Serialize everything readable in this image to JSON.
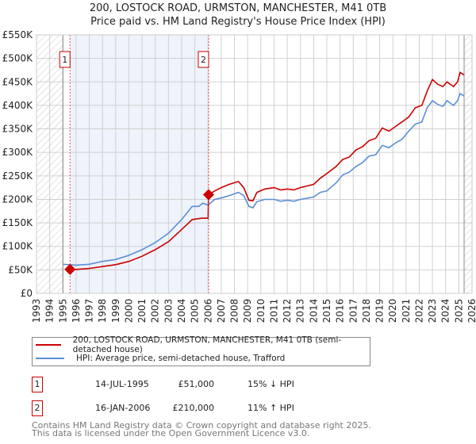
{
  "title": "200, LOSTOCK ROAD, URMSTON, MANCHESTER, M41 0TB",
  "subtitle": "Price paid vs. HM Land Registry's House Price Index (HPI)",
  "chart_data": {
    "type": "line",
    "xlim": [
      1993,
      2026
    ],
    "ylim": [
      0,
      550000
    ],
    "x_ticks": [
      "1993",
      "1994",
      "1995",
      "1996",
      "1997",
      "1998",
      "1999",
      "2000",
      "2001",
      "2002",
      "2003",
      "2004",
      "2005",
      "2006",
      "2007",
      "2008",
      "2009",
      "2010",
      "2011",
      "2012",
      "2013",
      "2014",
      "2015",
      "2016",
      "2017",
      "2018",
      "2019",
      "2020",
      "2021",
      "2022",
      "2023",
      "2024",
      "2025",
      "2026"
    ],
    "y_ticks": [
      {
        "v": 0,
        "label": "£0"
      },
      {
        "v": 50000,
        "label": "£50K"
      },
      {
        "v": 100000,
        "label": "£100K"
      },
      {
        "v": 150000,
        "label": "£150K"
      },
      {
        "v": 200000,
        "label": "£200K"
      },
      {
        "v": 250000,
        "label": "£250K"
      },
      {
        "v": 300000,
        "label": "£300K"
      },
      {
        "v": 350000,
        "label": "£350K"
      },
      {
        "v": 400000,
        "label": "£400K"
      },
      {
        "v": 450000,
        "label": "£450K"
      },
      {
        "v": 500000,
        "label": "£500K"
      },
      {
        "v": 550000,
        "label": "£550K"
      }
    ],
    "grid": true,
    "hatched_ranges": [
      [
        1993,
        1995.0
      ],
      [
        2025.4,
        2026
      ]
    ],
    "shaded_range": [
      1995.54,
      2006.04
    ],
    "series": [
      {
        "name": "200, LOSTOCK ROAD, URMSTON, MANCHESTER, M41 0TB (semi-detached house)",
        "color": "#cc0000",
        "points": [
          [
            1995.54,
            51000
          ],
          [
            1996,
            51000
          ],
          [
            1997,
            53000
          ],
          [
            1998,
            57000
          ],
          [
            1999,
            61000
          ],
          [
            2000,
            68000
          ],
          [
            2001,
            79000
          ],
          [
            2002,
            93000
          ],
          [
            2003,
            110000
          ],
          [
            2004,
            136000
          ],
          [
            2004.8,
            157000
          ],
          [
            2005.5,
            160000
          ],
          [
            2006.0,
            160000
          ],
          [
            2006.04,
            210000
          ],
          [
            2006.5,
            218000
          ],
          [
            2007,
            225000
          ],
          [
            2007.6,
            232000
          ],
          [
            2008.3,
            238000
          ],
          [
            2008.7,
            225000
          ],
          [
            2009.1,
            198000
          ],
          [
            2009.4,
            197000
          ],
          [
            2009.7,
            215000
          ],
          [
            2010.3,
            222000
          ],
          [
            2011,
            225000
          ],
          [
            2011.5,
            220000
          ],
          [
            2012,
            222000
          ],
          [
            2012.5,
            220000
          ],
          [
            2013,
            225000
          ],
          [
            2014,
            232000
          ],
          [
            2014.5,
            245000
          ],
          [
            2015,
            255000
          ],
          [
            2015.7,
            270000
          ],
          [
            2016.2,
            285000
          ],
          [
            2016.7,
            290000
          ],
          [
            2017.2,
            305000
          ],
          [
            2017.7,
            312000
          ],
          [
            2018.2,
            325000
          ],
          [
            2018.7,
            330000
          ],
          [
            2019.2,
            352000
          ],
          [
            2019.7,
            345000
          ],
          [
            2020.2,
            355000
          ],
          [
            2020.7,
            365000
          ],
          [
            2021.2,
            375000
          ],
          [
            2021.7,
            395000
          ],
          [
            2022.2,
            400000
          ],
          [
            2022.6,
            430000
          ],
          [
            2023,
            455000
          ],
          [
            2023.4,
            445000
          ],
          [
            2023.8,
            440000
          ],
          [
            2024.1,
            450000
          ],
          [
            2024.6,
            440000
          ],
          [
            2024.9,
            450000
          ],
          [
            2025.1,
            470000
          ],
          [
            2025.4,
            465000
          ]
        ]
      },
      {
        "name": "HPI: Average price, semi-detached house, Trafford",
        "color": "#5b8fd4",
        "points": [
          [
            1995.0,
            62000
          ],
          [
            1996,
            60000
          ],
          [
            1997,
            62000
          ],
          [
            1998,
            68000
          ],
          [
            1999,
            72000
          ],
          [
            2000,
            81000
          ],
          [
            2001,
            93000
          ],
          [
            2002,
            108000
          ],
          [
            2003,
            128000
          ],
          [
            2004,
            157000
          ],
          [
            2004.8,
            185000
          ],
          [
            2005.3,
            185000
          ],
          [
            2005.6,
            192000
          ],
          [
            2006.0,
            188000
          ],
          [
            2006.5,
            200000
          ],
          [
            2007,
            203000
          ],
          [
            2007.6,
            208000
          ],
          [
            2008.3,
            215000
          ],
          [
            2008.7,
            208000
          ],
          [
            2009.1,
            185000
          ],
          [
            2009.4,
            182000
          ],
          [
            2009.7,
            195000
          ],
          [
            2010.3,
            200000
          ],
          [
            2011,
            200000
          ],
          [
            2011.5,
            196000
          ],
          [
            2012,
            198000
          ],
          [
            2012.5,
            196000
          ],
          [
            2013,
            200000
          ],
          [
            2014,
            205000
          ],
          [
            2014.5,
            215000
          ],
          [
            2015,
            218000
          ],
          [
            2015.7,
            235000
          ],
          [
            2016.2,
            252000
          ],
          [
            2016.7,
            258000
          ],
          [
            2017.2,
            270000
          ],
          [
            2017.7,
            278000
          ],
          [
            2018.2,
            292000
          ],
          [
            2018.7,
            295000
          ],
          [
            2019.2,
            315000
          ],
          [
            2019.7,
            310000
          ],
          [
            2020.2,
            320000
          ],
          [
            2020.7,
            328000
          ],
          [
            2021.2,
            345000
          ],
          [
            2021.7,
            360000
          ],
          [
            2022.2,
            365000
          ],
          [
            2022.6,
            395000
          ],
          [
            2023,
            410000
          ],
          [
            2023.4,
            402000
          ],
          [
            2023.8,
            398000
          ],
          [
            2024.1,
            410000
          ],
          [
            2024.6,
            400000
          ],
          [
            2024.9,
            410000
          ],
          [
            2025.1,
            425000
          ],
          [
            2025.4,
            420000
          ]
        ]
      }
    ],
    "annotations": [
      {
        "label": "1",
        "x": 1995.54,
        "y": 51000
      },
      {
        "label": "2",
        "x": 2006.04,
        "y": 210000
      }
    ]
  },
  "legend": {
    "red_label": "200, LOSTOCK ROAD, URMSTON, MANCHESTER, M41 0TB (semi-detached house)",
    "blue_label": "HPI: Average price, semi-detached house, Trafford"
  },
  "sales": [
    {
      "num": "1",
      "date": "14-JUL-1995",
      "price": "£51,000",
      "hpi": "15% ↓ HPI"
    },
    {
      "num": "2",
      "date": "16-JAN-2006",
      "price": "£210,000",
      "hpi": "11% ↑ HPI"
    }
  ],
  "footer": {
    "line1": "Contains HM Land Registry data © Crown copyright and database right 2025.",
    "line2": "This data is licensed under the Open Government Licence v3.0."
  }
}
